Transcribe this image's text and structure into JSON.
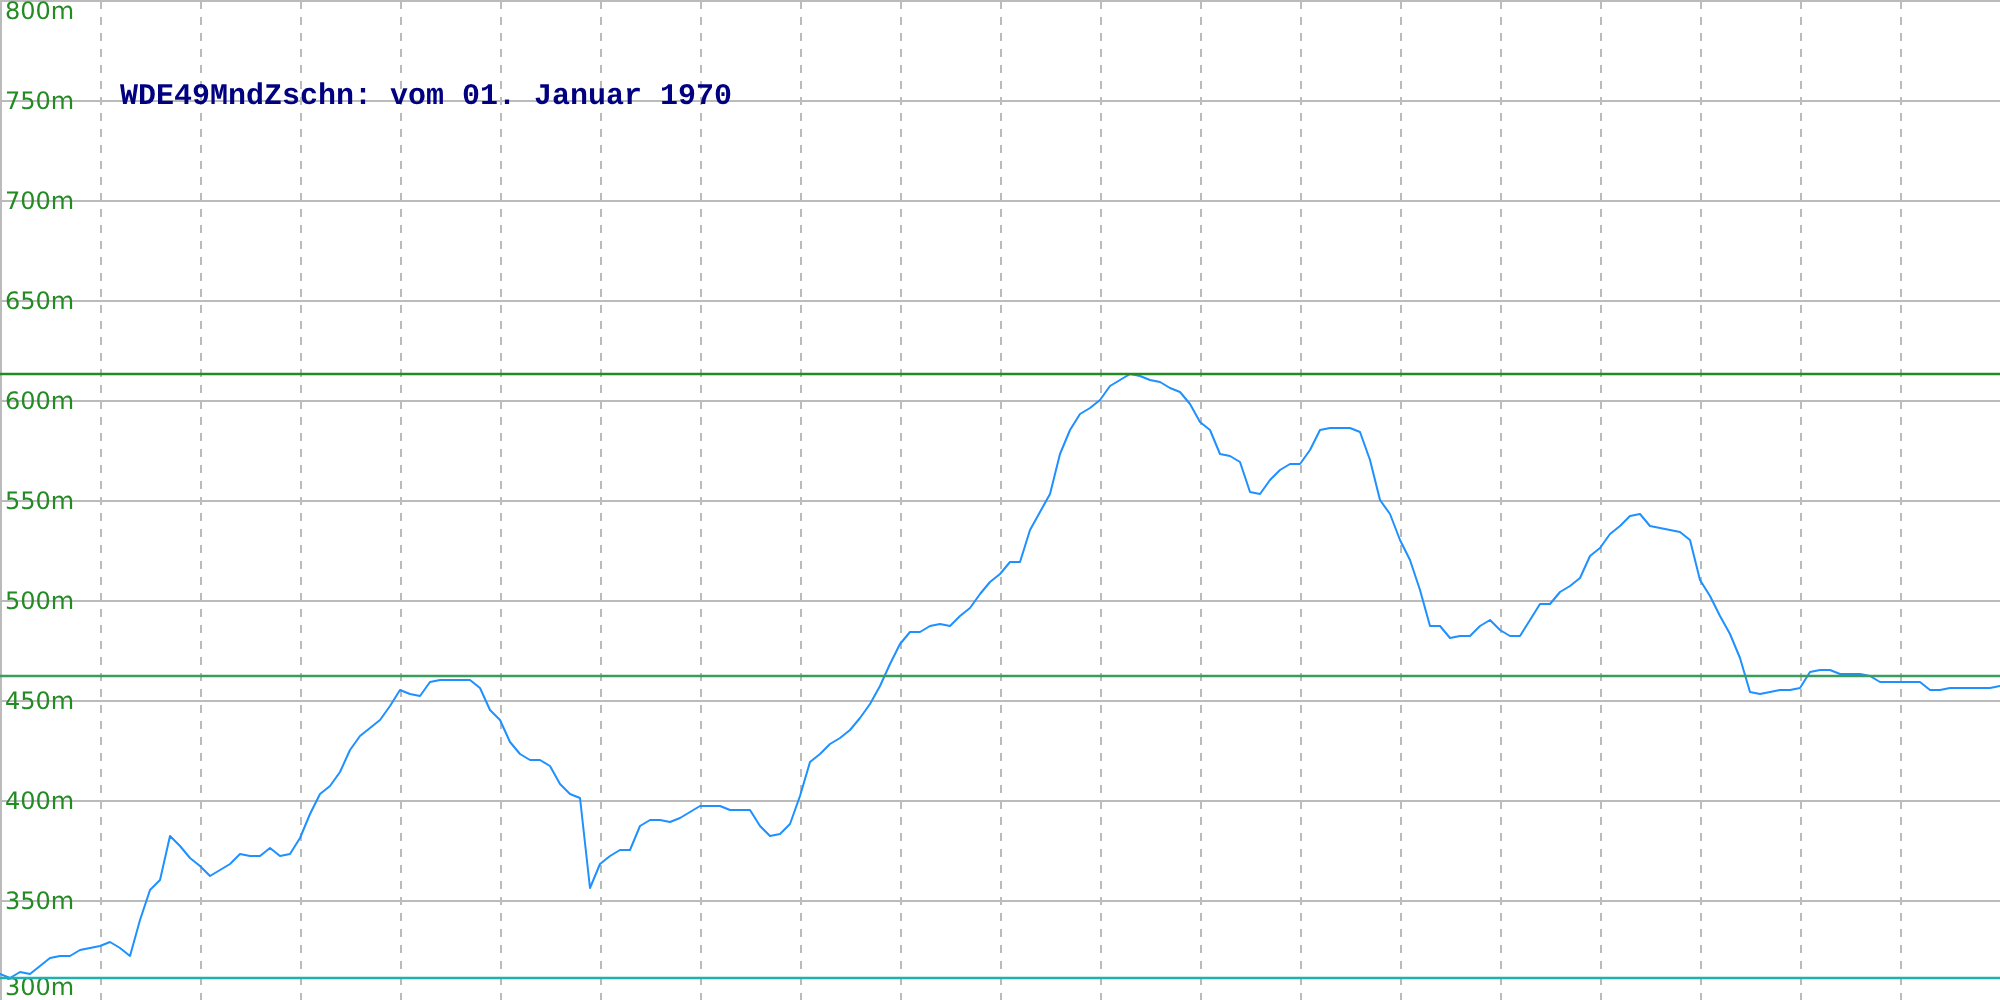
{
  "chart_data": {
    "type": "line",
    "title": "WDE49MndZschn: vom 01. Januar 1970",
    "categories": [
      null,
      null,
      null,
      null,
      null,
      null,
      null,
      null,
      null,
      null,
      null,
      null,
      null,
      null,
      null,
      null,
      null,
      null,
      null,
      null,
      null,
      null,
      null,
      null,
      null,
      null,
      null,
      null,
      null,
      null,
      null,
      null,
      null,
      null,
      null,
      null,
      null,
      null,
      null,
      null,
      null,
      null,
      null,
      null,
      null,
      null,
      null,
      null,
      null,
      null,
      null,
      null,
      null,
      null,
      null,
      null,
      null,
      null,
      null,
      null,
      null,
      null,
      null,
      null,
      null,
      null,
      null,
      null,
      null,
      null,
      null,
      null,
      null,
      null,
      null,
      null,
      null,
      null,
      null,
      null,
      null,
      null,
      null,
      null,
      null,
      null,
      null,
      null,
      null,
      null,
      null,
      null,
      null,
      null,
      null,
      null,
      null,
      null,
      null,
      null,
      null,
      null,
      null,
      null,
      null,
      null,
      null,
      null,
      null,
      null,
      null,
      null,
      null,
      null,
      null,
      null,
      null,
      null,
      null,
      null,
      null,
      null,
      null,
      null,
      null,
      null,
      null,
      null,
      null,
      null,
      null,
      null,
      null,
      null,
      null,
      null,
      null,
      null,
      null,
      null,
      null,
      null,
      null,
      null,
      null,
      null,
      null,
      null,
      null,
      null,
      null,
      null,
      null,
      null,
      null,
      null,
      null,
      null,
      null,
      null,
      null,
      null,
      null,
      null,
      null,
      null,
      null,
      null,
      null,
      null,
      null,
      null,
      null,
      null,
      null,
      null,
      null,
      null,
      null,
      null,
      null,
      null,
      null,
      null,
      null,
      null,
      null,
      null,
      null,
      null,
      null,
      null,
      null,
      null,
      null,
      null,
      null,
      null,
      null,
      null,
      null
    ],
    "values": [
      313,
      311,
      314,
      313,
      317,
      321,
      322,
      322,
      325,
      326,
      327,
      329,
      326,
      322,
      340,
      355,
      360,
      382,
      377,
      371,
      367,
      362,
      365,
      368,
      373,
      372,
      372,
      376,
      372,
      373,
      381,
      393,
      403,
      407,
      414,
      425,
      432,
      436,
      440,
      447,
      455,
      453,
      452,
      459,
      460,
      460,
      460,
      460,
      456,
      445,
      440,
      429,
      423,
      420,
      420,
      417,
      408,
      403,
      401,
      356,
      368,
      372,
      375,
      375,
      387,
      390,
      390,
      389,
      391,
      394,
      397,
      397,
      397,
      395,
      395,
      395,
      387,
      382,
      383,
      388,
      402,
      419,
      423,
      428,
      431,
      435,
      441,
      448,
      457,
      468,
      478,
      484,
      484,
      487,
      488,
      487,
      492,
      496,
      503,
      509,
      513,
      519,
      519,
      535,
      544,
      553,
      573,
      585,
      593,
      596,
      600,
      607,
      610,
      613,
      612,
      610,
      609,
      606,
      604,
      598,
      589,
      585,
      573,
      572,
      569,
      554,
      553,
      560,
      565,
      568,
      568,
      575,
      585,
      586,
      586,
      586,
      584,
      570,
      550,
      543,
      530,
      520,
      505,
      487,
      487,
      481,
      482,
      482,
      487,
      490,
      485,
      482,
      482,
      490,
      498,
      498,
      504,
      507,
      511,
      522,
      526,
      533,
      537,
      542,
      543,
      537,
      536,
      535,
      534,
      530,
      510,
      502,
      492,
      483,
      471,
      454,
      453,
      454,
      455,
      455,
      456,
      464,
      465,
      465,
      463,
      463,
      463,
      462,
      459,
      459,
      459,
      459,
      459,
      455,
      455,
      456,
      456,
      456,
      456,
      456,
      457
    ],
    "color": "#1e90ff",
    "ylim": [
      300,
      800
    ],
    "yticks": [
      {
        "value": 300,
        "label": "300m"
      },
      {
        "value": 350,
        "label": "350m"
      },
      {
        "value": 400,
        "label": "400m"
      },
      {
        "value": 450,
        "label": "450m"
      },
      {
        "value": 500,
        "label": "500m"
      },
      {
        "value": 550,
        "label": "550m"
      },
      {
        "value": 600,
        "label": "600m"
      },
      {
        "value": 650,
        "label": "650m"
      },
      {
        "value": 700,
        "label": "700m"
      },
      {
        "value": 750,
        "label": "750m"
      },
      {
        "value": 800,
        "label": "800m"
      }
    ],
    "grid": true,
    "ref_lines": [
      {
        "axis": "y",
        "value": 613,
        "color": "#228b22"
      },
      {
        "axis": "y",
        "value": 462,
        "color": "#3a9d5d"
      },
      {
        "axis": "y",
        "value": 311,
        "color": "#20b2aa"
      }
    ]
  }
}
